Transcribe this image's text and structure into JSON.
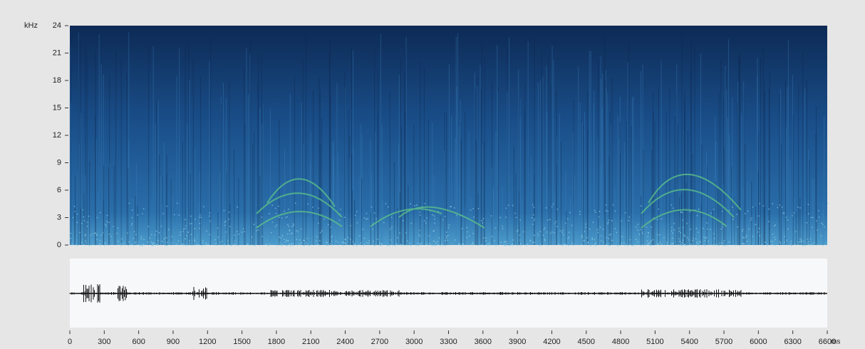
{
  "chart_data": {
    "type": "spectrogram",
    "y_label": "kHz",
    "x_label": "ms",
    "ylim": [
      0,
      24
    ],
    "yticks": [
      0,
      3,
      6,
      9,
      12,
      15,
      18,
      21,
      24
    ],
    "xlim": [
      0,
      6600
    ],
    "xticks": [
      0,
      300,
      600,
      900,
      1200,
      1500,
      1800,
      2100,
      2400,
      2700,
      3000,
      3300,
      3600,
      3900,
      4200,
      4500,
      4800,
      5100,
      5400,
      5700,
      6000,
      6300,
      6600
    ]
  }
}
